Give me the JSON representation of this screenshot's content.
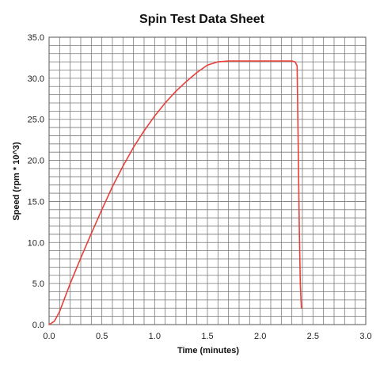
{
  "chart_data": {
    "type": "line",
    "title": "Spin Test Data Sheet",
    "xlabel": "Time (minutes)",
    "ylabel": "Speed (rpm * 10^3)",
    "xlim": [
      0,
      3.0
    ],
    "ylim": [
      0,
      35.0
    ],
    "xticks": [
      0,
      0.5,
      1.0,
      1.5,
      2.0,
      2.5,
      3.0
    ],
    "xtick_labels": [
      "0.0",
      "0.5",
      "1.0",
      "1.5",
      "2.0",
      "2.5",
      "3.0"
    ],
    "yticks": [
      0,
      5,
      10,
      15,
      20,
      25,
      30,
      35
    ],
    "ytick_labels": [
      "0.0",
      "5.0",
      "10.0",
      "15.0",
      "20.0",
      "25.0",
      "30.0",
      "35.0"
    ],
    "grid": true,
    "x_minor_step": 0.1,
    "y_minor_step": 1.0,
    "series": [
      {
        "color": "#e8403a",
        "x": [
          0,
          0.05,
          0.1,
          0.2,
          0.3,
          0.4,
          0.5,
          0.6,
          0.7,
          0.8,
          0.9,
          1.0,
          1.1,
          1.2,
          1.3,
          1.4,
          1.5,
          1.6,
          1.7,
          1.8,
          1.9,
          2.0,
          2.1,
          2.2,
          2.3,
          2.33,
          2.35,
          2.36,
          2.37,
          2.38,
          2.39
        ],
        "y": [
          0,
          0.4,
          1.6,
          5.0,
          8.1,
          11.1,
          14.0,
          16.8,
          19.3,
          21.6,
          23.6,
          25.4,
          27.0,
          28.4,
          29.6,
          30.7,
          31.6,
          32.0,
          32.1,
          32.1,
          32.1,
          32.1,
          32.1,
          32.1,
          32.1,
          32.0,
          31.5,
          22.0,
          12.0,
          5.0,
          2.0
        ]
      }
    ]
  }
}
